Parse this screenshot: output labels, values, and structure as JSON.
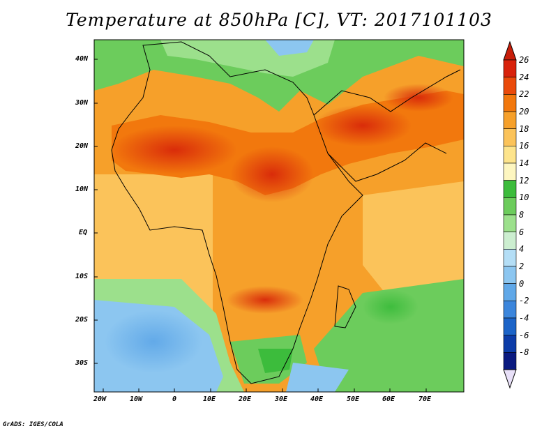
{
  "title": "Temperature at 850hPa [C], VT: 2017101103",
  "credit": "GrADS: IGES/COLA",
  "axes": {
    "lat_ticks": [
      "40N",
      "30N",
      "20N",
      "10N",
      "EQ",
      "10S",
      "20S",
      "30S"
    ],
    "lon_ticks": [
      "20W",
      "10W",
      "0",
      "10E",
      "20E",
      "30E",
      "40E",
      "50E",
      "60E",
      "70E"
    ]
  },
  "colorbar": {
    "labels": [
      "26",
      "24",
      "22",
      "20",
      "18",
      "16",
      "14",
      "12",
      "10",
      "8",
      "6",
      "4",
      "2",
      "0",
      "-2",
      "-4",
      "-6",
      "-8"
    ],
    "colors": [
      "#d8220b",
      "#ea4a0b",
      "#f2780d",
      "#f6a02a",
      "#fbc35a",
      "#fde48c",
      "#fdf6c0",
      "#3cbc3c",
      "#6ccc5c",
      "#9ce08c",
      "#cceed0",
      "#b4def6",
      "#8cc6f0",
      "#60a8e8",
      "#3c86dc",
      "#1c64c8",
      "#0c3ca8",
      "#0a1a80"
    ],
    "max_arrow_color": "#c81e0a",
    "min_arrow_color": "#e8e0f8"
  },
  "map": {
    "region": "Africa and Arabian Peninsula",
    "colors": {
      "hot": "#e03c0c",
      "warm": "#f28a16",
      "mild": "#f8b240",
      "cool_green": "#6cd05c",
      "cold_blue": "#8cc6f0"
    }
  }
}
